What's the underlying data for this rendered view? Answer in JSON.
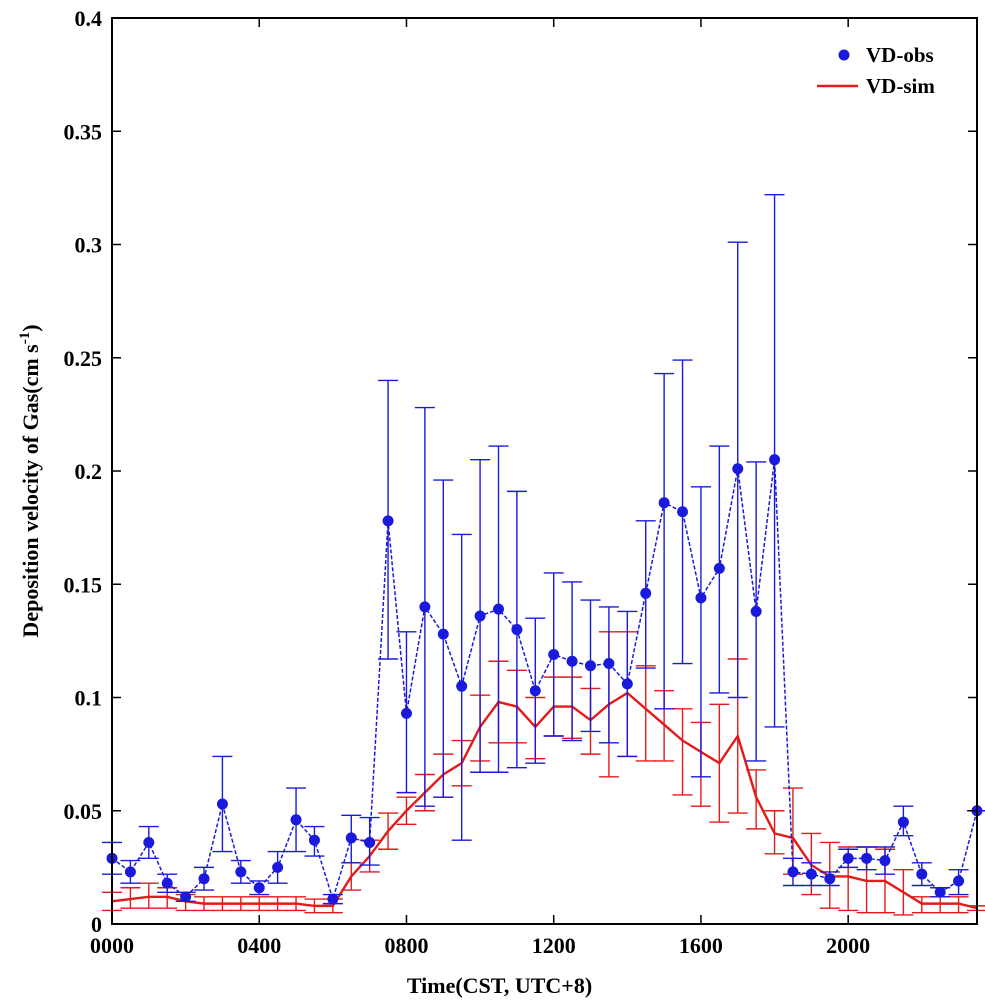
{
  "chart_data": {
    "type": "line",
    "title": "",
    "xlabel": "Time(CST, UTC+8)",
    "ylabel_main": "Deposition velocity of Gas(cm s",
    "ylabel_sup": "-1",
    "ylabel_close": ")",
    "xlim": [
      0,
      23.5
    ],
    "ylim": [
      0,
      0.4
    ],
    "xticks": [
      0,
      4,
      8,
      12,
      16,
      20
    ],
    "xtick_labels": [
      "0000",
      "0400",
      "0800",
      "1200",
      "1600",
      "2000"
    ],
    "yticks": [
      0,
      0.05,
      0.1,
      0.15,
      0.2,
      0.25,
      0.3,
      0.35,
      0.4
    ],
    "ytick_labels": [
      "0",
      "0.05",
      "0.1",
      "0.15",
      "0.2",
      "0.25",
      "0.3",
      "0.35",
      "0.4"
    ],
    "grid": false,
    "legend_position": "top-right",
    "colors": {
      "obs": "#1a1adc",
      "sim": "#e41a1a"
    },
    "series": [
      {
        "name": "VD-obs",
        "x": [
          0,
          0.5,
          1,
          1.5,
          2,
          2.5,
          3,
          3.5,
          4,
          4.5,
          5,
          5.5,
          6,
          6.5,
          7,
          7.5,
          8,
          8.5,
          9,
          9.5,
          10,
          10.5,
          11,
          11.5,
          12,
          12.5,
          13,
          13.5,
          14,
          14.5,
          15,
          15.5,
          16,
          16.5,
          17,
          17.5,
          18,
          18.5,
          19,
          19.5,
          20,
          20.5,
          21,
          21.5,
          22,
          22.5,
          23,
          23.5
        ],
        "values": [
          0.029,
          0.023,
          0.036,
          0.018,
          0.012,
          0.02,
          0.053,
          0.023,
          0.016,
          0.025,
          0.046,
          0.037,
          0.011,
          0.038,
          0.036,
          0.178,
          0.093,
          0.14,
          0.128,
          0.105,
          0.136,
          0.139,
          0.13,
          0.103,
          0.119,
          0.116,
          0.114,
          0.115,
          0.106,
          0.146,
          0.186,
          0.182,
          0.144,
          0.157,
          0.201,
          0.138,
          0.205,
          0.023,
          0.022,
          0.02,
          0.029,
          0.029,
          0.028,
          0.045,
          0.022,
          0.014,
          0.019,
          0.05
        ],
        "err_low": [
          0.022,
          0.018,
          0.029,
          0.014,
          0.01,
          0.015,
          0.032,
          0.018,
          0.013,
          0.018,
          0.032,
          0.03,
          0.009,
          0.027,
          0.026,
          0.117,
          0.058,
          0.052,
          0.056,
          0.037,
          0.067,
          0.067,
          0.069,
          0.071,
          0.083,
          0.081,
          0.085,
          0.08,
          0.074,
          0.113,
          0.095,
          0.115,
          0.065,
          0.102,
          0.1,
          0.072,
          0.087,
          0.017,
          0.017,
          0.017,
          0.025,
          0.024,
          0.022,
          0.039,
          0.017,
          0.012,
          0.013,
          0.05
        ],
        "err_high": [
          0.036,
          0.028,
          0.043,
          0.022,
          0.014,
          0.025,
          0.074,
          0.028,
          0.019,
          0.032,
          0.06,
          0.043,
          0.013,
          0.048,
          0.047,
          0.24,
          0.129,
          0.228,
          0.196,
          0.172,
          0.205,
          0.211,
          0.191,
          0.135,
          0.155,
          0.151,
          0.143,
          0.14,
          0.138,
          0.178,
          0.243,
          0.249,
          0.193,
          0.211,
          0.301,
          0.204,
          0.322,
          0.029,
          0.027,
          0.023,
          0.033,
          0.034,
          0.034,
          0.052,
          0.027,
          0.016,
          0.024,
          0.05
        ]
      },
      {
        "name": "VD-sim",
        "x": [
          0,
          0.5,
          1,
          1.5,
          2,
          2.5,
          3,
          3.5,
          4,
          4.5,
          5,
          5.5,
          6,
          6.5,
          7,
          7.5,
          8,
          8.5,
          9,
          9.5,
          10,
          10.5,
          11,
          11.5,
          12,
          12.5,
          13,
          13.5,
          14,
          14.5,
          15,
          15.5,
          16,
          16.5,
          17,
          17.5,
          18,
          18.5,
          19,
          19.5,
          20,
          20.5,
          21,
          21.5,
          22,
          22.5,
          23,
          23.5
        ],
        "values": [
          0.01,
          0.011,
          0.012,
          0.012,
          0.01,
          0.009,
          0.009,
          0.009,
          0.009,
          0.009,
          0.009,
          0.008,
          0.008,
          0.021,
          0.03,
          0.041,
          0.05,
          0.058,
          0.066,
          0.071,
          0.087,
          0.098,
          0.096,
          0.087,
          0.096,
          0.096,
          0.09,
          0.097,
          0.102,
          0.095,
          0.088,
          0.081,
          0.076,
          0.071,
          0.083,
          0.056,
          0.04,
          0.038,
          0.026,
          0.021,
          0.021,
          0.019,
          0.019,
          0.014,
          0.009,
          0.009,
          0.009,
          0.007
        ],
        "err_low": [
          0.006,
          0.007,
          0.007,
          0.007,
          0.006,
          0.006,
          0.006,
          0.006,
          0.006,
          0.006,
          0.006,
          0.005,
          0.005,
          0.015,
          0.023,
          0.033,
          0.044,
          0.05,
          0.056,
          0.061,
          0.072,
          0.08,
          0.08,
          0.073,
          0.083,
          0.082,
          0.075,
          0.065,
          0.074,
          0.072,
          0.072,
          0.057,
          0.052,
          0.045,
          0.049,
          0.042,
          0.031,
          0.022,
          0.013,
          0.007,
          0.006,
          0.005,
          0.005,
          0.004,
          0.005,
          0.005,
          0.005,
          0.006
        ],
        "err_high": [
          0.014,
          0.016,
          0.018,
          0.016,
          0.013,
          0.012,
          0.012,
          0.012,
          0.012,
          0.012,
          0.012,
          0.011,
          0.011,
          0.027,
          0.037,
          0.049,
          0.056,
          0.066,
          0.075,
          0.081,
          0.101,
          0.116,
          0.112,
          0.1,
          0.109,
          0.109,
          0.104,
          0.129,
          0.129,
          0.114,
          0.103,
          0.095,
          0.089,
          0.097,
          0.117,
          0.068,
          0.05,
          0.06,
          0.04,
          0.036,
          0.034,
          0.034,
          0.033,
          0.024,
          0.012,
          0.012,
          0.012,
          0.008
        ]
      }
    ]
  }
}
